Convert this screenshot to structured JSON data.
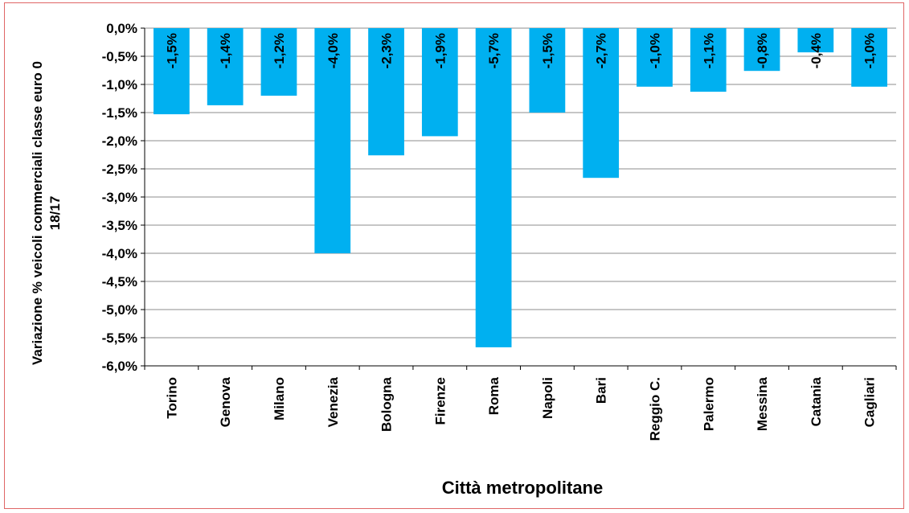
{
  "chart_data": {
    "type": "bar",
    "title": "",
    "xlabel": "Città metropolitane",
    "ylabel": "Variazione % veicoli commerciali classe euro 0 18/17",
    "ylabel_lines": [
      "Variazione % veicoli commerciali classe euro 0",
      "18/17"
    ],
    "ylim": [
      -6.0,
      0.0
    ],
    "ytick_step": 0.5,
    "ytick_labels": [
      "0,0%",
      "-0,5%",
      "-1,0%",
      "-1,5%",
      "-2,0%",
      "-2,5%",
      "-3,0%",
      "-3,5%",
      "-4,0%",
      "-4,5%",
      "-5,0%",
      "-5,5%",
      "-6,0%"
    ],
    "grid": true,
    "legend": "none",
    "bar_color": "#00b0f0",
    "categories": [
      "Torino",
      "Genova",
      "Milano",
      "Venezia",
      "Bologna",
      "Firenze",
      "Roma",
      "Napoli",
      "Bari",
      "Reggio C.",
      "Palermo",
      "Messina",
      "Catania",
      "Cagliari"
    ],
    "values": [
      -1.53,
      -1.37,
      -1.2,
      -4.0,
      -2.26,
      -1.92,
      -5.67,
      -1.5,
      -2.66,
      -1.04,
      -1.13,
      -0.76,
      -0.43,
      -1.04
    ],
    "data_labels": [
      "-1,5%",
      "-1,4%",
      "-1,2%",
      "-4,0%",
      "-2,3%",
      "-1,9%",
      "-5,7%",
      "-1,5%",
      "-2,7%",
      "-1,0%",
      "-1,1%",
      "-0,8%",
      "-0,4%",
      "-1,0%"
    ]
  }
}
